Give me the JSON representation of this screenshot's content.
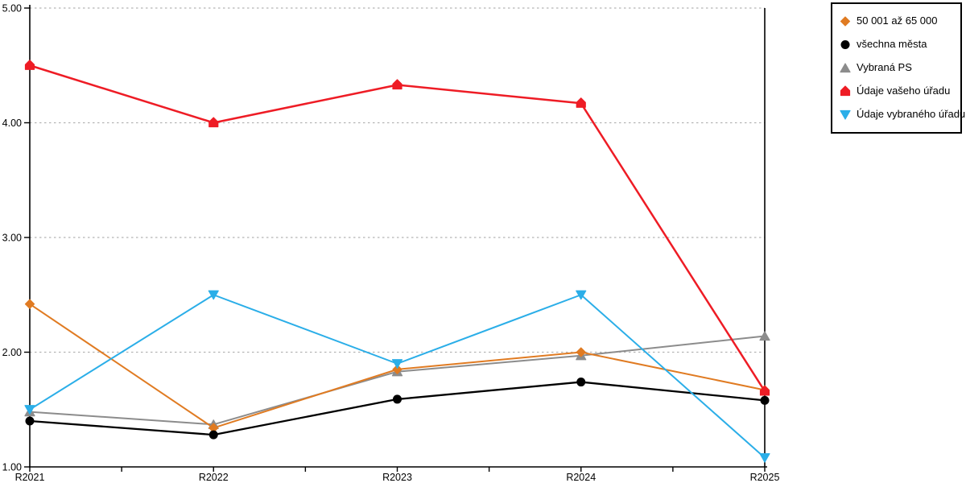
{
  "chart_data": {
    "type": "line",
    "title": "",
    "xlabel": "",
    "ylabel": "",
    "categories": [
      "R2021",
      "R2022",
      "R2023",
      "R2024",
      "R2025"
    ],
    "series": [
      {
        "name": "50 001 až 65 000",
        "marker": "diamond",
        "color": "#E07B22",
        "values": [
          2.42,
          1.34,
          1.85,
          2.0,
          1.67
        ]
      },
      {
        "name": "všechna města",
        "marker": "circle",
        "color": "#000000",
        "values": [
          1.4,
          1.28,
          1.59,
          1.74,
          1.58
        ]
      },
      {
        "name": "Vybraná PS",
        "marker": "triangle-up",
        "color": "#8C8C8C",
        "values": [
          1.48,
          1.37,
          1.83,
          1.97,
          2.14
        ]
      },
      {
        "name": "Údaje vašeho úřadu",
        "marker": "pentagon-up",
        "color": "#EE1C25",
        "values": [
          4.5,
          4.0,
          4.33,
          4.17,
          1.66
        ]
      },
      {
        "name": "Údaje vybraného úřadu",
        "marker": "triangle-down",
        "color": "#2BAEE8",
        "values": [
          1.5,
          2.5,
          1.9,
          2.5,
          1.08
        ]
      }
    ],
    "ylim": [
      1,
      5
    ],
    "yticks": [
      1,
      2,
      3,
      4,
      5
    ],
    "ytick_labels": [
      "1.00",
      "2.00",
      "3.00",
      "4.00",
      "5.00"
    ],
    "grid": "horizontal-dotted",
    "grid_color": "#B3B3B3",
    "axis_color": "#000000",
    "legend_position": "top-right"
  }
}
